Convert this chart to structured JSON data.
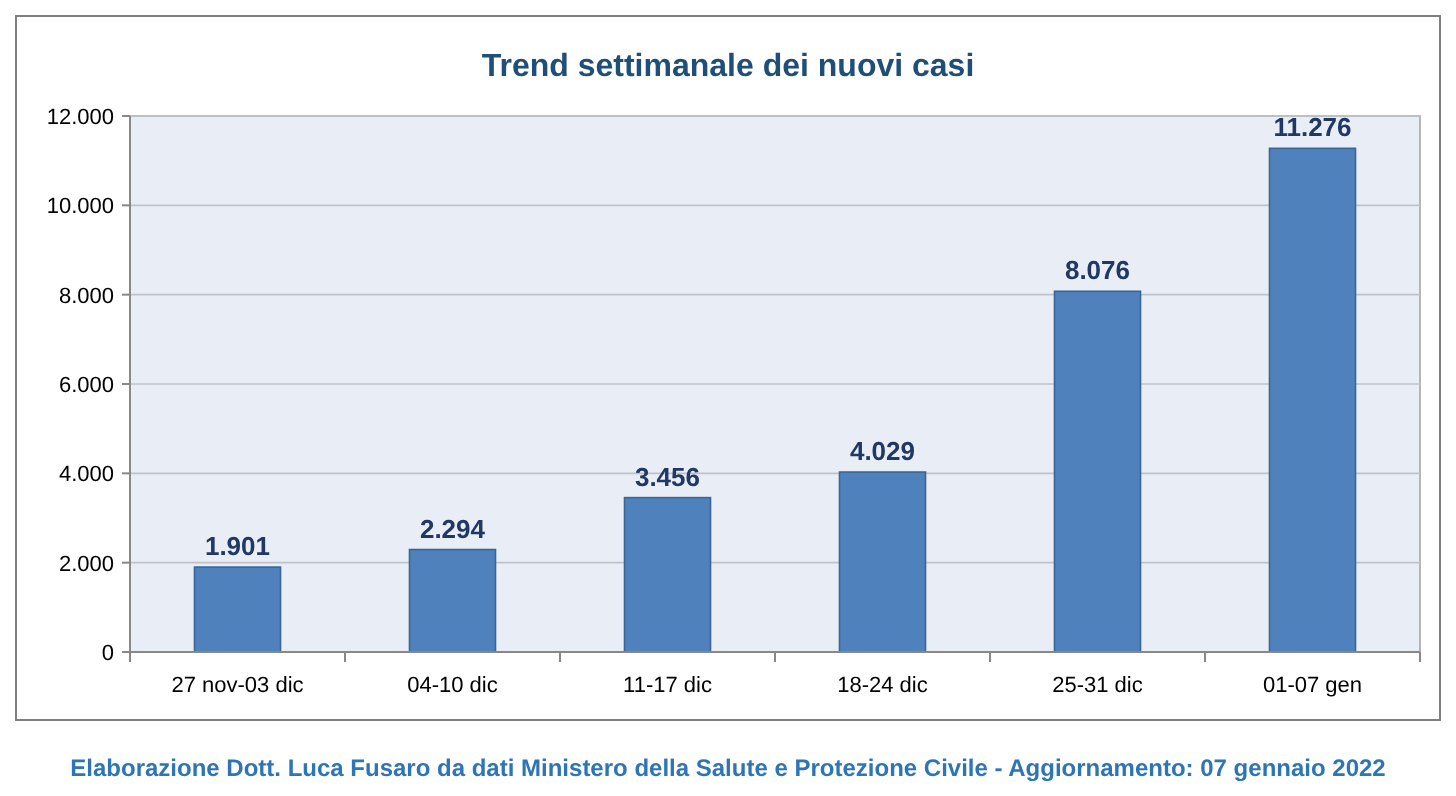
{
  "chart_data": {
    "type": "bar",
    "title": "Trend settimanale dei nuovi casi",
    "categories": [
      "27 nov-03 dic",
      "04-10 dic",
      "11-17 dic",
      "18-24 dic",
      "25-31 dic",
      "01-07 gen"
    ],
    "values": [
      1901,
      2294,
      3456,
      4029,
      8076,
      11276
    ],
    "value_labels": [
      "1.901",
      "2.294",
      "3.456",
      "4.029",
      "8.076",
      "11.276"
    ],
    "color": "#4f81bd",
    "ylim": [
      0,
      12000
    ],
    "yticks": [
      0,
      {
        "value": 2000,
        "label": "2.000"
      },
      {
        "value": 4000,
        "label": "4.000"
      },
      {
        "value": 6000,
        "label": "6.000"
      },
      {
        "value": 8000,
        "label": "8.000"
      },
      {
        "value": 10000,
        "label": "10.000"
      },
      {
        "value": 12000,
        "label": "12.000"
      }
    ],
    "grid": "y",
    "annotations": [
      "Elaborazione Dott. Luca Fusaro da dati Ministero della Salute e Protezione Civile - Aggiornamento: 07 gennaio 2022"
    ]
  }
}
